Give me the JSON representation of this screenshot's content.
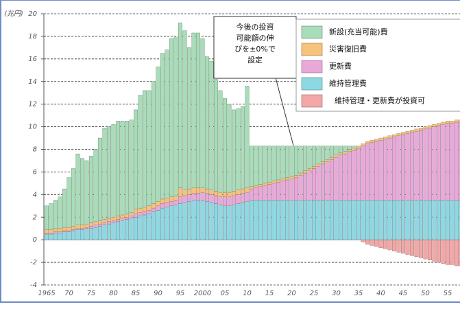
{
  "chart_data": {
    "type": "bar",
    "stacked": true,
    "y_unit_label": "(兆円)",
    "annotation": [
      "今後の投資",
      "可能額の伸",
      "びを±0%で",
      "設定"
    ],
    "categories": [
      "1965",
      null,
      null,
      null,
      null,
      "70",
      null,
      null,
      null,
      null,
      "75",
      null,
      null,
      null,
      null,
      "80",
      null,
      null,
      null,
      null,
      "85",
      null,
      null,
      null,
      null,
      "90",
      null,
      null,
      null,
      null,
      "95",
      null,
      null,
      null,
      null,
      "2000",
      null,
      null,
      null,
      null,
      "05",
      null,
      null,
      null,
      null,
      "10",
      null,
      null,
      null,
      null,
      "15",
      null,
      null,
      null,
      null,
      "20",
      null,
      null,
      null,
      null,
      "25",
      null,
      null,
      null,
      null,
      "30",
      null,
      null,
      null,
      null,
      "35",
      null,
      null,
      null,
      null,
      "40",
      null,
      null,
      null,
      null,
      "45",
      null,
      null,
      null,
      null,
      "50",
      null,
      null,
      null,
      null,
      "55",
      null,
      null,
      null
    ],
    "series": [
      {
        "name": "維持管理費",
        "color": "#8ed8e3",
        "values": [
          0.5,
          0.5,
          0.6,
          0.6,
          0.7,
          0.7,
          0.8,
          0.9,
          0.9,
          1.0,
          1.0,
          1.1,
          1.2,
          1.3,
          1.4,
          1.5,
          1.6,
          1.7,
          1.8,
          1.9,
          2.0,
          2.1,
          2.2,
          2.3,
          2.5,
          2.6,
          2.8,
          2.9,
          3.0,
          3.1,
          3.2,
          3.3,
          3.4,
          3.5,
          3.5,
          3.5,
          3.4,
          3.3,
          3.2,
          3.1,
          3.0,
          3.0,
          3.1,
          3.2,
          3.3,
          3.4,
          3.5,
          3.5,
          3.5,
          3.5,
          3.5,
          3.5,
          3.5,
          3.5,
          3.5,
          3.5,
          3.5,
          3.5,
          3.5,
          3.5,
          3.5,
          3.5,
          3.5,
          3.5,
          3.5,
          3.5,
          3.5,
          3.5,
          3.5,
          3.5,
          3.5,
          3.5,
          3.5,
          3.5,
          3.5,
          3.5,
          3.5,
          3.5,
          3.5,
          3.5,
          3.5,
          3.5,
          3.5,
          3.5,
          3.5,
          3.5,
          3.5,
          3.5,
          3.5,
          3.5,
          3.5,
          3.5,
          3.5,
          3.5
        ]
      },
      {
        "name": "更新費",
        "color": "#e8a9da",
        "values": [
          0.1,
          0.1,
          0.1,
          0.1,
          0.1,
          0.1,
          0.1,
          0.1,
          0.1,
          0.1,
          0.2,
          0.2,
          0.2,
          0.2,
          0.2,
          0.2,
          0.2,
          0.2,
          0.2,
          0.2,
          0.3,
          0.3,
          0.3,
          0.3,
          0.3,
          0.4,
          0.4,
          0.4,
          0.4,
          0.4,
          0.6,
          0.6,
          0.6,
          0.6,
          0.6,
          0.7,
          0.7,
          0.7,
          0.7,
          0.7,
          0.8,
          0.8,
          0.8,
          0.8,
          0.8,
          0.8,
          1.0,
          1.1,
          1.2,
          1.3,
          1.4,
          1.5,
          1.6,
          1.7,
          1.8,
          1.9,
          2.0,
          2.2,
          2.4,
          2.6,
          2.8,
          3.0,
          3.2,
          3.4,
          3.6,
          3.8,
          4.0,
          4.1,
          4.3,
          4.4,
          4.6,
          4.8,
          5.0,
          5.1,
          5.2,
          5.3,
          5.4,
          5.5,
          5.6,
          5.7,
          5.8,
          5.9,
          6.0,
          6.1,
          6.2,
          6.3,
          6.4,
          6.5,
          6.6,
          6.7,
          6.8,
          6.8,
          6.9,
          6.9
        ]
      },
      {
        "name": "災害復旧費",
        "color": "#f6c27c",
        "values": [
          0.3,
          0.3,
          0.3,
          0.3,
          0.3,
          0.3,
          0.3,
          0.3,
          0.3,
          0.3,
          0.3,
          0.3,
          0.3,
          0.3,
          0.3,
          0.3,
          0.3,
          0.3,
          0.3,
          0.3,
          0.4,
          0.4,
          0.4,
          0.4,
          0.4,
          0.4,
          0.4,
          0.4,
          0.4,
          0.4,
          0.8,
          0.5,
          0.5,
          0.5,
          0.5,
          0.4,
          0.4,
          0.4,
          0.4,
          0.4,
          0.4,
          0.4,
          0.4,
          0.4,
          0.4,
          0.4,
          0.2,
          0.2,
          0.2,
          0.2,
          0.2,
          0.2,
          0.2,
          0.2,
          0.2,
          0.2,
          0.2,
          0.2,
          0.2,
          0.2,
          0.2,
          0.2,
          0.2,
          0.2,
          0.2,
          0.2,
          0.2,
          0.2,
          0.2,
          0.2,
          0.2,
          0.2,
          0.2,
          0.2,
          0.2,
          0.2,
          0.2,
          0.2,
          0.2,
          0.2,
          0.2,
          0.2,
          0.2,
          0.2,
          0.2,
          0.2,
          0.2,
          0.2,
          0.2,
          0.2,
          0.2,
          0.2,
          0.2,
          0.2
        ]
      },
      {
        "name": "新設(充当可能)費",
        "color": "#a9dcb8",
        "values": [
          2.1,
          2.3,
          2.5,
          2.8,
          3.4,
          4.4,
          5.1,
          6.3,
          5.9,
          5.6,
          5.9,
          6.4,
          7.3,
          8.1,
          8.1,
          8.2,
          8.4,
          8.3,
          8.2,
          8.2,
          8.8,
          10.0,
          10.3,
          10.2,
          10.8,
          11.9,
          12.9,
          13.1,
          14.0,
          14.0,
          14.6,
          14.1,
          12.5,
          13.7,
          13.7,
          13.2,
          11.7,
          11.4,
          9.9,
          9.0,
          8.3,
          7.8,
          7.2,
          7.2,
          7.3,
          9.0,
          3.6,
          3.5,
          3.4,
          3.3,
          3.2,
          3.1,
          3.0,
          2.9,
          2.8,
          2.7,
          2.6,
          2.4,
          2.2,
          2.0,
          1.8,
          1.6,
          1.4,
          1.2,
          1.0,
          0.8,
          0.6,
          0.5,
          0.3,
          0.2,
          0.0,
          0,
          0,
          0,
          0,
          0,
          0,
          0,
          0,
          0,
          0,
          0,
          0,
          0,
          0,
          0,
          0,
          0,
          0,
          0,
          0,
          0,
          0,
          0
        ]
      },
      {
        "name": "維持管理・更新費が投資可",
        "color": "#f3a7a7",
        "values": [
          0,
          0,
          0,
          0,
          0,
          0,
          0,
          0,
          0,
          0,
          0,
          0,
          0,
          0,
          0,
          0,
          0,
          0,
          0,
          0,
          0,
          0,
          0,
          0,
          0,
          0,
          0,
          0,
          0,
          0,
          0,
          0,
          0,
          0,
          0,
          0,
          0,
          0,
          0,
          0,
          0,
          0,
          0,
          0,
          0,
          0,
          0,
          0,
          0,
          0,
          0,
          0,
          0,
          0,
          0,
          0,
          0,
          0,
          0,
          0,
          0,
          0,
          0,
          0,
          0,
          0,
          0,
          0,
          0,
          0,
          0,
          -0.2,
          -0.4,
          -0.5,
          -0.6,
          -0.7,
          -0.8,
          -0.9,
          -1.0,
          -1.1,
          -1.2,
          -1.3,
          -1.4,
          -1.5,
          -1.6,
          -1.7,
          -1.8,
          -1.9,
          -2.0,
          -2.1,
          -2.2,
          -2.2,
          -2.3,
          -2.3
        ]
      }
    ],
    "legend_order": [
      3,
      2,
      1,
      0,
      4
    ],
    "ylim": [
      -4,
      20
    ],
    "yticks": [
      -4,
      -2,
      0,
      2,
      4,
      6,
      8,
      10,
      12,
      14,
      16,
      18,
      20
    ],
    "grid": true
  }
}
